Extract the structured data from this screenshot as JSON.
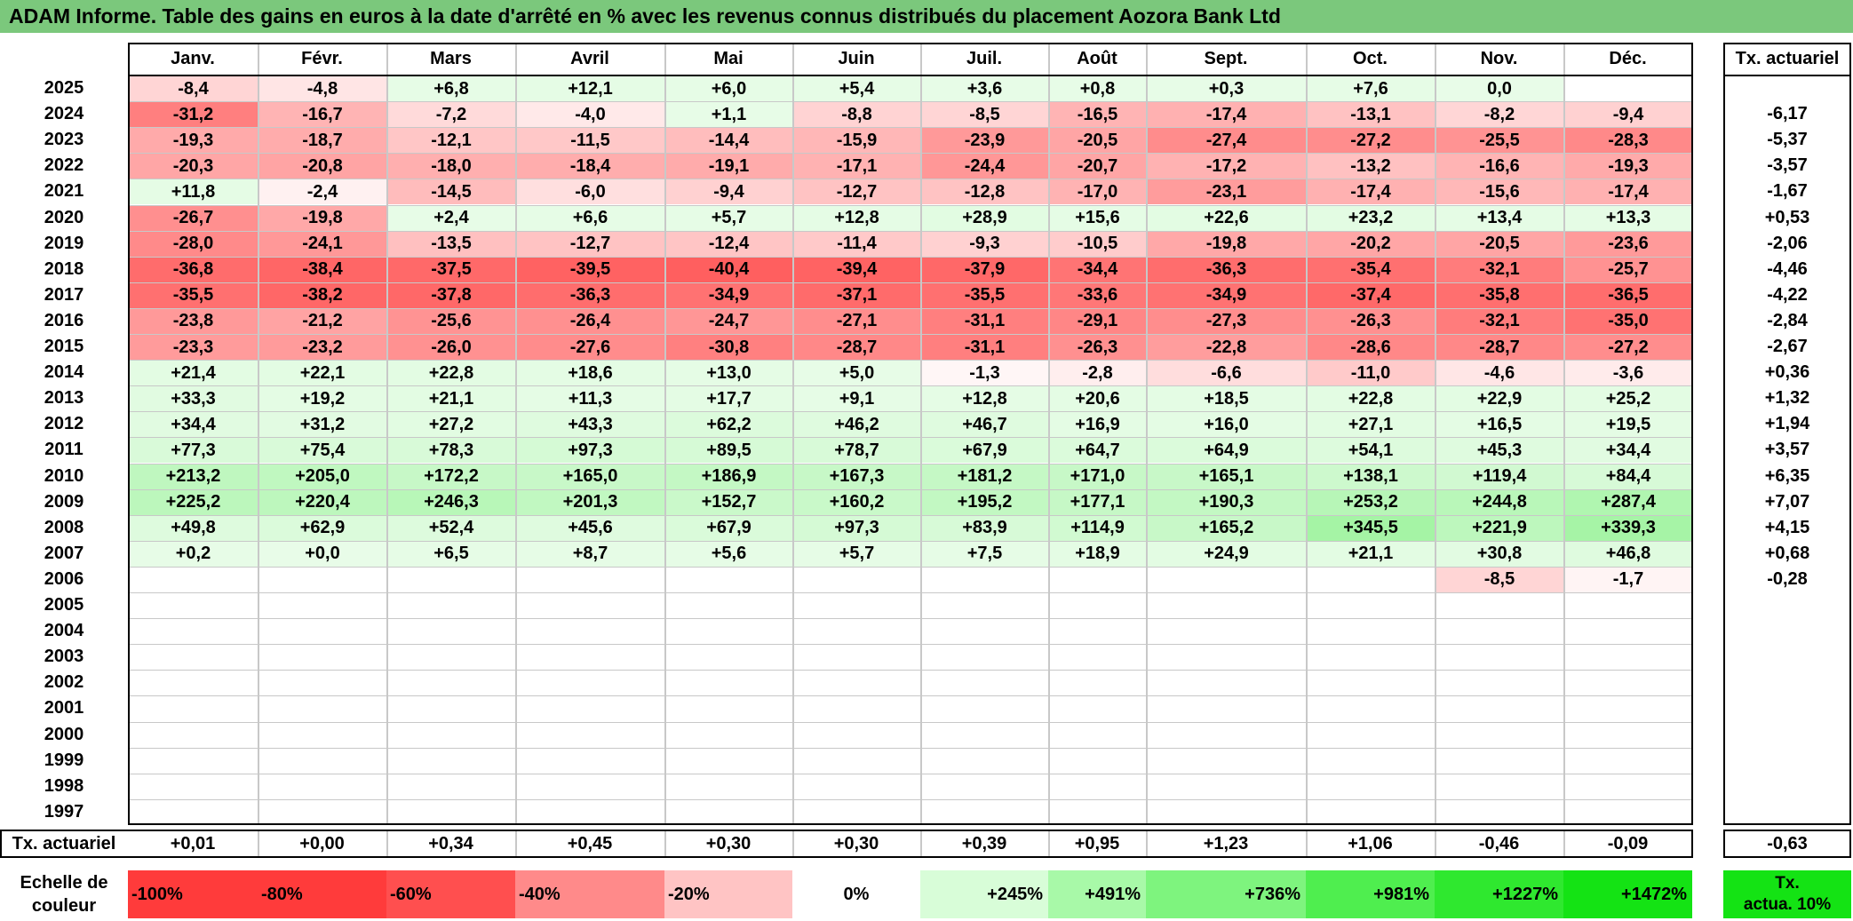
{
  "title": "ADAM Informe. Table des gains en euros à la date d'arrêté en % avec les revenus connus distribués du placement Aozora Bank Ltd",
  "chart_data": {
    "type": "heatmap",
    "title": "ADAM Informe. Table des gains en euros à la date d'arrêté en % avec les revenus connus distribués du placement Aozora Bank Ltd",
    "columns": [
      "Janv.",
      "Févr.",
      "Mars",
      "Avril",
      "Mai",
      "Juin",
      "Juil.",
      "Août",
      "Sept.",
      "Oct.",
      "Nov.",
      "Déc."
    ],
    "rate_header": "Tx. actuariel",
    "rows": [
      {
        "year": "2025",
        "values": [
          "-8,4",
          "-4,8",
          "+6,8",
          "+12,1",
          "+6,0",
          "+5,4",
          "+3,6",
          "+0,8",
          "+0,3",
          "+7,6",
          "0,0",
          ""
        ],
        "rate": ""
      },
      {
        "year": "2024",
        "values": [
          "-31,2",
          "-16,7",
          "-7,2",
          "-4,0",
          "+1,1",
          "-8,8",
          "-8,5",
          "-16,5",
          "-17,4",
          "-13,1",
          "-8,2",
          "-9,4"
        ],
        "rate": "-6,17"
      },
      {
        "year": "2023",
        "values": [
          "-19,3",
          "-18,7",
          "-12,1",
          "-11,5",
          "-14,4",
          "-15,9",
          "-23,9",
          "-20,5",
          "-27,4",
          "-27,2",
          "-25,5",
          "-28,3"
        ],
        "rate": "-5,37"
      },
      {
        "year": "2022",
        "values": [
          "-20,3",
          "-20,8",
          "-18,0",
          "-18,4",
          "-19,1",
          "-17,1",
          "-24,4",
          "-20,7",
          "-17,2",
          "-13,2",
          "-16,6",
          "-19,3"
        ],
        "rate": "-3,57"
      },
      {
        "year": "2021",
        "values": [
          "+11,8",
          "-2,4",
          "-14,5",
          "-6,0",
          "-9,4",
          "-12,7",
          "-12,8",
          "-17,0",
          "-23,1",
          "-17,4",
          "-15,6",
          "-17,4"
        ],
        "rate": "-1,67"
      },
      {
        "year": "2020",
        "values": [
          "-26,7",
          "-19,8",
          "+2,4",
          "+6,6",
          "+5,7",
          "+12,8",
          "+28,9",
          "+15,6",
          "+22,6",
          "+23,2",
          "+13,4",
          "+13,3"
        ],
        "rate": "+0,53"
      },
      {
        "year": "2019",
        "values": [
          "-28,0",
          "-24,1",
          "-13,5",
          "-12,7",
          "-12,4",
          "-11,4",
          "-9,3",
          "-10,5",
          "-19,8",
          "-20,2",
          "-20,5",
          "-23,6"
        ],
        "rate": "-2,06"
      },
      {
        "year": "2018",
        "values": [
          "-36,8",
          "-38,4",
          "-37,5",
          "-39,5",
          "-40,4",
          "-39,4",
          "-37,9",
          "-34,4",
          "-36,3",
          "-35,4",
          "-32,1",
          "-25,7"
        ],
        "rate": "-4,46"
      },
      {
        "year": "2017",
        "values": [
          "-35,5",
          "-38,2",
          "-37,8",
          "-36,3",
          "-34,9",
          "-37,1",
          "-35,5",
          "-33,6",
          "-34,9",
          "-37,4",
          "-35,8",
          "-36,5"
        ],
        "rate": "-4,22"
      },
      {
        "year": "2016",
        "values": [
          "-23,8",
          "-21,2",
          "-25,6",
          "-26,4",
          "-24,7",
          "-27,1",
          "-31,1",
          "-29,1",
          "-27,3",
          "-26,3",
          "-32,1",
          "-35,0"
        ],
        "rate": "-2,84"
      },
      {
        "year": "2015",
        "values": [
          "-23,3",
          "-23,2",
          "-26,0",
          "-27,6",
          "-30,8",
          "-28,7",
          "-31,1",
          "-26,3",
          "-22,8",
          "-28,6",
          "-28,7",
          "-27,2"
        ],
        "rate": "-2,67"
      },
      {
        "year": "2014",
        "values": [
          "+21,4",
          "+22,1",
          "+22,8",
          "+18,6",
          "+13,0",
          "+5,0",
          "-1,3",
          "-2,8",
          "-6,6",
          "-11,0",
          "-4,6",
          "-3,6"
        ],
        "rate": "+0,36"
      },
      {
        "year": "2013",
        "values": [
          "+33,3",
          "+19,2",
          "+21,1",
          "+11,3",
          "+17,7",
          "+9,1",
          "+12,8",
          "+20,6",
          "+18,5",
          "+22,8",
          "+22,9",
          "+25,2"
        ],
        "rate": "+1,32"
      },
      {
        "year": "2012",
        "values": [
          "+34,4",
          "+31,2",
          "+27,2",
          "+43,3",
          "+62,2",
          "+46,2",
          "+46,7",
          "+16,9",
          "+16,0",
          "+27,1",
          "+16,5",
          "+19,5"
        ],
        "rate": "+1,94"
      },
      {
        "year": "2011",
        "values": [
          "+77,3",
          "+75,4",
          "+78,3",
          "+97,3",
          "+89,5",
          "+78,7",
          "+67,9",
          "+64,7",
          "+64,9",
          "+54,1",
          "+45,3",
          "+34,4"
        ],
        "rate": "+3,57"
      },
      {
        "year": "2010",
        "values": [
          "+213,2",
          "+205,0",
          "+172,2",
          "+165,0",
          "+186,9",
          "+167,3",
          "+181,2",
          "+171,0",
          "+165,1",
          "+138,1",
          "+119,4",
          "+84,4"
        ],
        "rate": "+6,35"
      },
      {
        "year": "2009",
        "values": [
          "+225,2",
          "+220,4",
          "+246,3",
          "+201,3",
          "+152,7",
          "+160,2",
          "+195,2",
          "+177,1",
          "+190,3",
          "+253,2",
          "+244,8",
          "+287,4"
        ],
        "rate": "+7,07"
      },
      {
        "year": "2008",
        "values": [
          "+49,8",
          "+62,9",
          "+52,4",
          "+45,6",
          "+67,9",
          "+97,3",
          "+83,9",
          "+114,9",
          "+165,2",
          "+345,5",
          "+221,9",
          "+339,3"
        ],
        "rate": "+4,15"
      },
      {
        "year": "2007",
        "values": [
          "+0,2",
          "+0,0",
          "+6,5",
          "+8,7",
          "+5,6",
          "+5,7",
          "+7,5",
          "+18,9",
          "+24,9",
          "+21,1",
          "+30,8",
          "+46,8"
        ],
        "rate": "+0,68"
      },
      {
        "year": "2006",
        "values": [
          "",
          "",
          "",
          "",
          "",
          "",
          "",
          "",
          "",
          "",
          "-8,5",
          "-1,7"
        ],
        "rate": "-0,28"
      },
      {
        "year": "2005",
        "values": [
          "",
          "",
          "",
          "",
          "",
          "",
          "",
          "",
          "",
          "",
          "",
          ""
        ],
        "rate": ""
      },
      {
        "year": "2004",
        "values": [
          "",
          "",
          "",
          "",
          "",
          "",
          "",
          "",
          "",
          "",
          "",
          ""
        ],
        "rate": ""
      },
      {
        "year": "2003",
        "values": [
          "",
          "",
          "",
          "",
          "",
          "",
          "",
          "",
          "",
          "",
          "",
          ""
        ],
        "rate": ""
      },
      {
        "year": "2002",
        "values": [
          "",
          "",
          "",
          "",
          "",
          "",
          "",
          "",
          "",
          "",
          "",
          ""
        ],
        "rate": ""
      },
      {
        "year": "2001",
        "values": [
          "",
          "",
          "",
          "",
          "",
          "",
          "",
          "",
          "",
          "",
          "",
          ""
        ],
        "rate": ""
      },
      {
        "year": "2000",
        "values": [
          "",
          "",
          "",
          "",
          "",
          "",
          "",
          "",
          "",
          "",
          "",
          ""
        ],
        "rate": ""
      },
      {
        "year": "1999",
        "values": [
          "",
          "",
          "",
          "",
          "",
          "",
          "",
          "",
          "",
          "",
          "",
          ""
        ],
        "rate": ""
      },
      {
        "year": "1998",
        "values": [
          "",
          "",
          "",
          "",
          "",
          "",
          "",
          "",
          "",
          "",
          "",
          ""
        ],
        "rate": ""
      },
      {
        "year": "1997",
        "values": [
          "",
          "",
          "",
          "",
          "",
          "",
          "",
          "",
          "",
          "",
          "",
          ""
        ],
        "rate": ""
      }
    ],
    "footer": {
      "label": "Tx. actuariel",
      "values": [
        "+0,01",
        "+0,00",
        "+0,34",
        "+0,45",
        "+0,30",
        "+0,30",
        "+0,39",
        "+0,95",
        "+1,23",
        "+1,06",
        "-0,46",
        "-0,09"
      ],
      "rate": "-0,63"
    },
    "scale": {
      "label_line1": "Echelle de",
      "label_line2": "couleur",
      "items": [
        {
          "label": "-100%",
          "color": "#ff3b3b"
        },
        {
          "label": "-80%",
          "color": "#ff3b3b"
        },
        {
          "label": "-60%",
          "color": "#ff4f4f"
        },
        {
          "label": "-40%",
          "color": "#ff8a8a"
        },
        {
          "label": "-20%",
          "color": "#ffc4c4"
        },
        {
          "label": "0%",
          "color": "#ffffff"
        },
        {
          "label": "+245%",
          "color": "#d8fdd8"
        },
        {
          "label": "+491%",
          "color": "#a8f9a8"
        },
        {
          "label": "+736%",
          "color": "#7ef47e"
        },
        {
          "label": "+981%",
          "color": "#4fee4f"
        },
        {
          "label": "+1227%",
          "color": "#2fe82f"
        },
        {
          "label": "+1472%",
          "color": "#14e314"
        }
      ],
      "rate_line1": "Tx.",
      "rate_line2": "actua. 10%",
      "rate_color": "#14e314"
    },
    "colors": {
      "header_green": "#7bc87c"
    }
  }
}
